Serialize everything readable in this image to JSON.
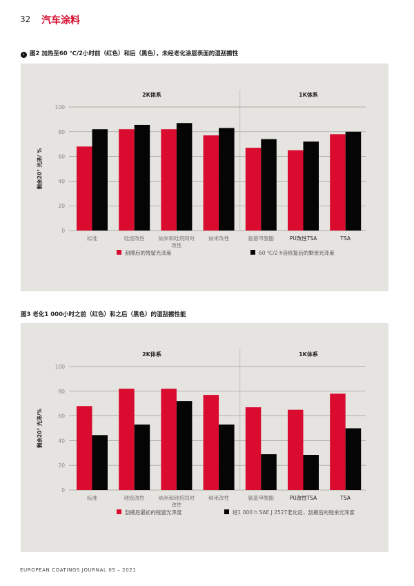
{
  "header": {
    "page_number": "32",
    "section": "汽车涂料"
  },
  "footer": "EUROPEAN COATINGS JOURNAL 05 – 2021",
  "colors": {
    "red": "#d90b2e",
    "black": "#050505",
    "panel_bg": "#e6e4e0"
  },
  "figures": [
    {
      "title": "图2 加热至60 ℃/2小时前（红色）和后（黑色），未经老化涂层表面的湿刮擦性",
      "icon": "arrow-right-circle-icon"
    },
    {
      "title": "图3 老化1 000小时之前（红色）和之后（黑色）的湿刮擦性能"
    }
  ],
  "chart_data": [
    {
      "type": "bar",
      "groups": [
        "2K体系",
        "1K体系"
      ],
      "group_sizes": [
        4,
        3
      ],
      "categories": [
        "标准",
        "硅烷改性",
        "纳米和硅烷同时改性",
        "纳米改性",
        "氨基甲酸酯",
        "PU改性TSA",
        "TSA"
      ],
      "category_lines": [
        [
          "标准"
        ],
        [
          "硅烷改性"
        ],
        [
          "纳米和硅烷同时",
          "改性"
        ],
        [
          "纳米改性"
        ],
        [
          "氨基甲酸酯"
        ],
        [
          "PU改性TSA"
        ],
        [
          "TSA"
        ]
      ],
      "ylabel": "剩余20° 光泽/ %",
      "ylim": [
        0,
        100
      ],
      "yticks": [
        0,
        20,
        40,
        60,
        80,
        100
      ],
      "grid": true,
      "legend_position": "bottom",
      "series": [
        {
          "name": "刮擦后的残留光泽度",
          "color": "#d90b2e",
          "values": [
            68,
            82,
            82,
            77,
            67,
            65,
            78
          ]
        },
        {
          "name": "60 ℃/2 h自修复后的剩余光泽度",
          "color": "#050505",
          "values": [
            82,
            85.5,
            87,
            83,
            74,
            72,
            80
          ]
        }
      ]
    },
    {
      "type": "bar",
      "groups": [
        "2K体系",
        "1K体系"
      ],
      "group_sizes": [
        4,
        3
      ],
      "categories": [
        "标准",
        "硅烷改性",
        "纳米和硅烷同时改性",
        "纳米改性",
        "氨基甲酸酯",
        "PU改性TSA",
        "TSA"
      ],
      "category_lines": [
        [
          "标准"
        ],
        [
          "硅烷改性"
        ],
        [
          "纳米和硅烷同时",
          "改性"
        ],
        [
          "纳米改性"
        ],
        [
          "氨基甲酸酯"
        ],
        [
          "PU改性TSA"
        ],
        [
          "TSA"
        ]
      ],
      "ylabel": "剩余20° 光泽/%",
      "ylim": [
        0,
        100
      ],
      "yticks": [
        0,
        20,
        40,
        60,
        80,
        100
      ],
      "grid": true,
      "legend_position": "bottom",
      "series": [
        {
          "name": "刮擦后最初的残留光泽度",
          "color": "#d90b2e",
          "values": [
            68,
            82,
            82,
            77,
            67,
            65,
            78
          ]
        },
        {
          "name": "经1 000 h SAE J 2527老化后，刮擦后的残余光泽度",
          "color": "#050505",
          "values": [
            44.5,
            53,
            72,
            53,
            29,
            28.5,
            50
          ]
        }
      ]
    }
  ]
}
